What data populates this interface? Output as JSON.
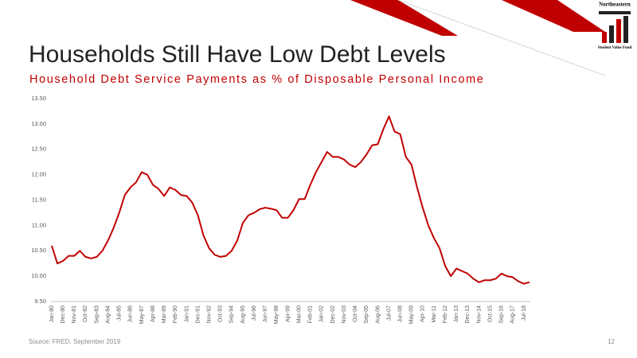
{
  "chart_data": {
    "type": "line",
    "title": "Households Still Have Low Debt Levels",
    "subtitle": "Household Debt Service Payments as % of Disposable Personal Income",
    "source": "Source: FRED, September 2019",
    "page_number": "12",
    "logo_top": "Northeastern",
    "logo_bottom": "Student Value Fund",
    "categories": [
      "Jan-80",
      null,
      "Dec-80",
      null,
      "Nov-81",
      null,
      "Oct-82",
      null,
      "Sep-83",
      null,
      "Aug-84",
      null,
      "Jul-85",
      null,
      "Jun-86",
      null,
      "May-87",
      null,
      "Apr-88",
      null,
      "Mar-89",
      null,
      "Feb-90",
      null,
      "Jan-91",
      null,
      "Dec-91",
      null,
      "Nov-92",
      null,
      "Oct-93",
      null,
      "Sep-94",
      null,
      "Aug-95",
      null,
      "Jul-96",
      null,
      "Jun-97",
      null,
      "May-98",
      null,
      "Apr-99",
      null,
      "Mar-00",
      null,
      "Feb-01",
      null,
      "Jan-02",
      null,
      "Dec-02",
      null,
      "Nov-03",
      null,
      "Oct-04",
      null,
      "Sep-05",
      null,
      "Aug-06",
      null,
      "Jul-07",
      null,
      "Jun-08",
      null,
      "May-09",
      null,
      "Apr-10",
      null,
      "Mar-11",
      null,
      "Feb-12",
      null,
      "Jan-13",
      null,
      "Dec-13",
      null,
      "Nov-14",
      null,
      "Oct-15",
      null,
      "Sep-16",
      null,
      "Aug-17",
      null,
      "Jul-18",
      null
    ],
    "series": [
      {
        "name": "Household Debt Service Payments",
        "color": "#c00000",
        "values": [
          10.6,
          10.25,
          10.3,
          10.4,
          10.4,
          10.5,
          10.38,
          10.35,
          10.38,
          10.5,
          10.7,
          10.95,
          11.25,
          11.6,
          11.75,
          11.85,
          12.05,
          12.0,
          11.8,
          11.72,
          11.58,
          11.75,
          11.7,
          11.6,
          11.58,
          11.45,
          11.2,
          10.8,
          10.55,
          10.42,
          10.38,
          10.4,
          10.5,
          10.7,
          11.05,
          11.2,
          11.25,
          11.32,
          11.35,
          11.33,
          11.3,
          11.15,
          11.15,
          11.3,
          11.52,
          11.52,
          11.8,
          12.05,
          12.25,
          12.45,
          12.35,
          12.35,
          12.3,
          12.2,
          12.15,
          12.25,
          12.4,
          12.58,
          12.6,
          12.9,
          13.15,
          12.85,
          12.8,
          12.35,
          12.2,
          11.75,
          11.35,
          11.0,
          10.75,
          10.55,
          10.2,
          10.0,
          10.15,
          10.1,
          10.05,
          9.95,
          9.88,
          9.92,
          9.92,
          9.95,
          10.05,
          10.0,
          9.98,
          9.9,
          9.85,
          9.88
        ]
      }
    ],
    "ylim": [
      9.5,
      13.5
    ],
    "yticks": [
      {
        "value": 9.5,
        "label": "9.50"
      },
      {
        "value": 10,
        "label": "10.00"
      },
      {
        "value": 10.5,
        "label": "10.50"
      },
      {
        "value": 11,
        "label": "11.00"
      },
      {
        "value": 11.5,
        "label": "11.50"
      },
      {
        "value": 12,
        "label": "12.00"
      },
      {
        "value": 12.5,
        "label": "12.50"
      },
      {
        "value": 13,
        "label": "13.00"
      },
      {
        "value": 13.5,
        "label": "13.50"
      }
    ],
    "grid": false
  }
}
